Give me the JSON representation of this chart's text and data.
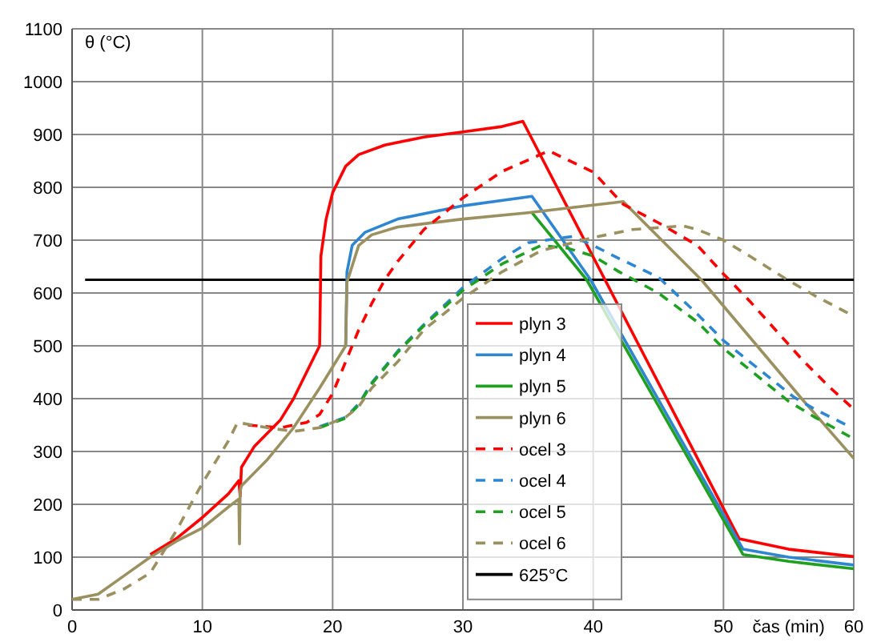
{
  "chart_data": {
    "type": "line",
    "xlabel": "čas (min)",
    "ylabel": "θ (°C)",
    "xlim": [
      0,
      60
    ],
    "ylim": [
      0,
      1100
    ],
    "xticks": [
      0,
      10,
      20,
      30,
      40,
      50,
      60
    ],
    "yticks": [
      0,
      100,
      200,
      300,
      400,
      500,
      600,
      700,
      800,
      900,
      1000,
      1100
    ],
    "grid": true,
    "legend": "bottom",
    "series": [
      {
        "name": "plyn 3",
        "color": "#ff0000",
        "line_style": "solid",
        "x": [
          6,
          8,
          10,
          12,
          12.8,
          12.9,
          13,
          14,
          16,
          17,
          19,
          19.1,
          19.5,
          20,
          21,
          22,
          24,
          27,
          30,
          33,
          34.6,
          51.2,
          55,
          60
        ],
        "values": [
          105,
          135,
          175,
          220,
          245,
          215,
          270,
          310,
          360,
          400,
          500,
          670,
          740,
          790,
          840,
          862,
          880,
          895,
          905,
          915,
          925,
          135,
          115,
          101
        ]
      },
      {
        "name": "plyn 4",
        "color": "#2e86d1",
        "line_style": "solid",
        "x": [
          21,
          21.1,
          21.5,
          22.5,
          25,
          30,
          35.3,
          39.8,
          51.5,
          55,
          60
        ],
        "values": [
          500,
          640,
          690,
          715,
          740,
          765,
          783,
          625,
          115,
          100,
          85
        ]
      },
      {
        "name": "plyn 5",
        "color": "#20a020",
        "line_style": "solid",
        "x": [
          35.3,
          39.5,
          51.5,
          55,
          60
        ],
        "values": [
          752,
          625,
          105,
          92,
          78
        ]
      },
      {
        "name": "plyn 6",
        "color": "#9a9060",
        "line_style": "solid",
        "x": [
          0,
          2,
          4,
          6,
          8,
          10,
          12,
          12.8,
          12.85,
          12.9,
          13,
          15,
          17,
          19,
          21,
          21.1,
          22,
          23,
          25,
          30,
          35,
          42.3,
          48.3,
          56,
          60
        ],
        "values": [
          20,
          30,
          65,
          100,
          130,
          155,
          195,
          210,
          125,
          225,
          235,
          285,
          345,
          420,
          500,
          620,
          690,
          710,
          725,
          740,
          752,
          773,
          625,
          400,
          287
        ]
      },
      {
        "name": "ocel 3",
        "color": "#ff0000",
        "line_style": "dashed",
        "x": [
          13.5,
          16,
          18,
          19,
          20,
          21,
          22,
          23,
          24,
          25,
          27,
          30,
          33,
          36.6,
          40,
          42.3,
          45,
          48,
          50,
          52,
          54,
          56,
          58,
          60
        ],
        "values": [
          350,
          345,
          355,
          370,
          410,
          470,
          530,
          580,
          625,
          660,
          720,
          780,
          830,
          869,
          829,
          768,
          733,
          690,
          636,
          585,
          530,
          475,
          425,
          380
        ]
      },
      {
        "name": "ocel 4",
        "color": "#2e86d1",
        "line_style": "dashed",
        "x": [
          19,
          21,
          22,
          23,
          25,
          27,
          30,
          33,
          35,
          38.4,
          40,
          42,
          45,
          48,
          50,
          52,
          55.4,
          57,
          59.7
        ],
        "values": [
          347,
          365,
          390,
          430,
          490,
          540,
          610,
          665,
          695,
          707,
          690,
          665,
          630,
          560,
          510,
          470,
          403,
          380,
          347
        ]
      },
      {
        "name": "ocel 5",
        "color": "#20a020",
        "line_style": "dashed",
        "x": [
          19,
          21,
          22,
          23,
          25,
          27,
          30,
          33,
          36,
          38,
          40,
          42,
          45,
          48,
          50,
          52,
          55,
          57,
          59.7
        ],
        "values": [
          345,
          363,
          388,
          428,
          488,
          538,
          605,
          655,
          690,
          685,
          670,
          640,
          600,
          545,
          495,
          455,
          395,
          365,
          328
        ]
      },
      {
        "name": "ocel 6",
        "color": "#9a9060",
        "line_style": "dashed",
        "x": [
          0,
          2,
          4,
          6,
          8,
          10,
          12,
          12.7,
          15,
          17,
          19,
          21,
          22,
          23,
          25,
          27,
          30,
          33,
          36,
          40,
          43,
          46.9,
          48,
          50,
          52,
          54.9,
          57,
          59.7
        ],
        "values": [
          20,
          20,
          40,
          70,
          150,
          240,
          320,
          355,
          345,
          338,
          345,
          365,
          385,
          420,
          470,
          530,
          590,
          640,
          680,
          705,
          720,
          727,
          720,
          700,
          670,
          625,
          595,
          560
        ]
      }
    ],
    "ref_lines": [
      {
        "axis": "y",
        "value": 625,
        "label": "625°C",
        "color": "#000000",
        "line_style": "solid"
      }
    ]
  }
}
